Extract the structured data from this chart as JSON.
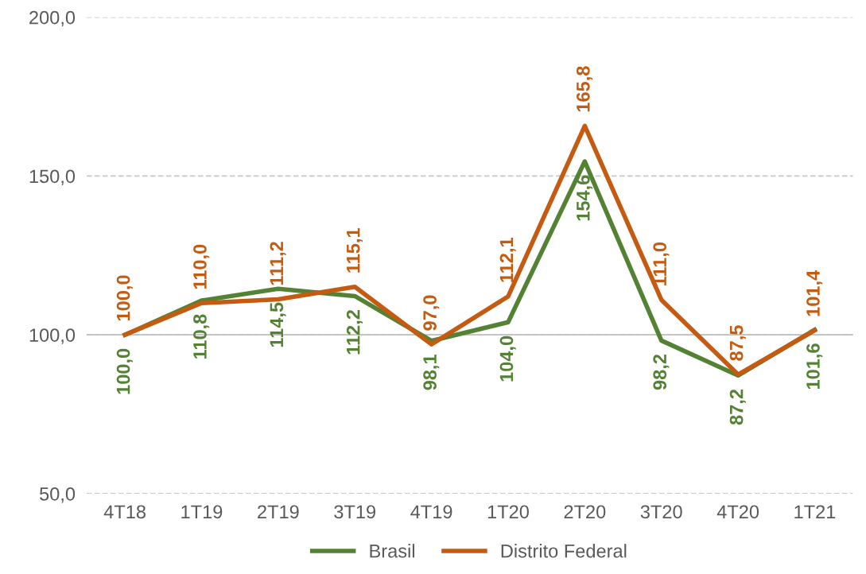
{
  "chart_data": {
    "type": "line",
    "categories": [
      "4T18",
      "1T19",
      "2T19",
      "3T19",
      "4T19",
      "1T20",
      "2T20",
      "3T20",
      "4T20",
      "1T21"
    ],
    "series": [
      {
        "name": "Brasil",
        "color": "#548235",
        "values": [
          100.0,
          110.8,
          114.5,
          112.2,
          98.1,
          104.0,
          154.6,
          98.2,
          87.2,
          101.6
        ],
        "value_labels": [
          "100,0",
          "110,8",
          "114,5",
          "112,2",
          "98,1",
          "104,0",
          "154,6",
          "98,2",
          "87,2",
          "101,6"
        ]
      },
      {
        "name": "Distrito Federal",
        "color": "#c55a11",
        "values": [
          100.0,
          110.0,
          111.2,
          115.1,
          97.0,
          112.1,
          165.8,
          111.0,
          87.5,
          101.4
        ],
        "value_labels": [
          "100,0",
          "110,0",
          "111,2",
          "115,1",
          "97,0",
          "112,1",
          "165,8",
          "111,0",
          "87,5",
          "101,4"
        ]
      }
    ],
    "ylim": [
      50,
      200
    ],
    "yticks": [
      {
        "value": 50,
        "label": "50,0"
      },
      {
        "value": 100,
        "label": "100,0"
      },
      {
        "value": 150,
        "label": "150,0"
      },
      {
        "value": 200,
        "label": "200,0"
      }
    ],
    "ref_lines": [
      {
        "axis": "y",
        "value": 100,
        "label": null,
        "color": "#bfbfbf",
        "line_style": "solid"
      }
    ],
    "grid": "y",
    "legend": "bottom",
    "marker": "none",
    "line_style": "solid"
  }
}
